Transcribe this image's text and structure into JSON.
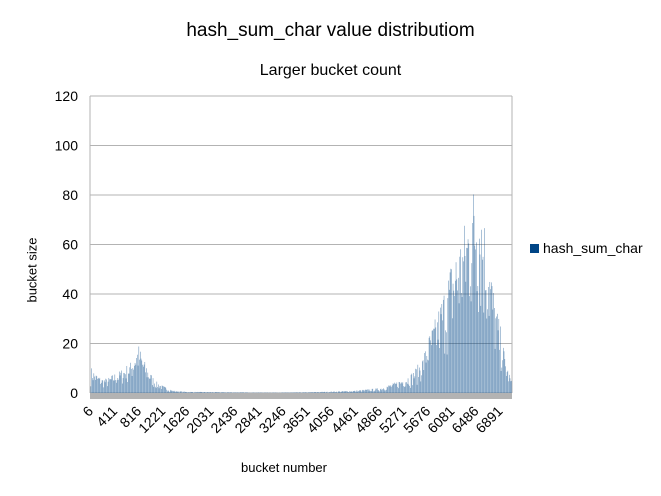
{
  "chart_data": {
    "type": "bar",
    "title": "hash_sum_char value distributiom",
    "subtitle": "Larger bucket count",
    "xlabel": "bucket number",
    "ylabel": "bucket size",
    "ylim": [
      0,
      120
    ],
    "yticks": [
      0,
      20,
      40,
      60,
      80,
      100,
      120
    ],
    "xlim": [
      6,
      7100
    ],
    "xticks": [
      "6",
      "411",
      "816",
      "1221",
      "1626",
      "2031",
      "2436",
      "2841",
      "3246",
      "3651",
      "4056",
      "4461",
      "4866",
      "5271",
      "5676",
      "6081",
      "6486",
      "6891"
    ],
    "grid": true,
    "legend_position": "right",
    "series": [
      {
        "name": "hash_sum_char",
        "color": "#004586",
        "envelope": {
          "x": [
            6,
            100,
            200,
            300,
            411,
            500,
            600,
            700,
            750,
            816,
            900,
            1000,
            1100,
            1221,
            1400,
            1626,
            2031,
            2436,
            2841,
            3246,
            3651,
            4056,
            4461,
            4866,
            5100,
            5271,
            5400,
            5500,
            5600,
            5676,
            5800,
            5900,
            6000,
            6081,
            6200,
            6300,
            6400,
            6486,
            6550,
            6600,
            6700,
            6800,
            6891,
            7000,
            7100
          ],
          "y": [
            11,
            8,
            6,
            6,
            8,
            9,
            11,
            13,
            17,
            20,
            14,
            9,
            5,
            3,
            1,
            0.5,
            0.4,
            0.3,
            0.2,
            0.2,
            0.3,
            0.6,
            1,
            2,
            4,
            6,
            8,
            11,
            15,
            22,
            30,
            38,
            47,
            55,
            63,
            70,
            80,
            90,
            85,
            78,
            60,
            40,
            28,
            12,
            4
          ]
        }
      }
    ]
  }
}
